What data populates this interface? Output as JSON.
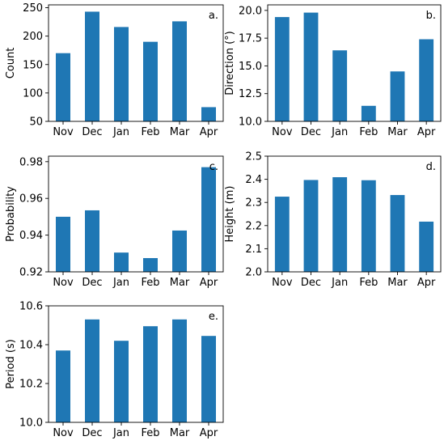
{
  "chart_data": [
    {
      "type": "bar",
      "panel_label": "a.",
      "categories": [
        "Nov",
        "Dec",
        "Jan",
        "Feb",
        "Mar",
        "Apr"
      ],
      "values": [
        170,
        243,
        216,
        190,
        226,
        75
      ],
      "ylabel": "Count",
      "ylim": [
        50,
        255
      ],
      "yticks": [
        "50",
        "100",
        "150",
        "200",
        "250"
      ],
      "ytick_values": [
        50,
        100,
        150,
        200,
        250
      ],
      "color": "#1f77b4"
    },
    {
      "type": "bar",
      "panel_label": "b.",
      "categories": [
        "Nov",
        "Dec",
        "Jan",
        "Feb",
        "Mar",
        "Apr"
      ],
      "values": [
        19.4,
        19.8,
        16.4,
        11.4,
        14.5,
        17.4
      ],
      "ylabel": "Direction (°)",
      "ylim": [
        10.0,
        20.5
      ],
      "yticks": [
        "10.0",
        "12.5",
        "15.0",
        "17.5",
        "20.0"
      ],
      "ytick_values": [
        10.0,
        12.5,
        15.0,
        17.5,
        20.0
      ],
      "color": "#1f77b4"
    },
    {
      "type": "bar",
      "panel_label": "c.",
      "categories": [
        "Nov",
        "Dec",
        "Jan",
        "Feb",
        "Mar",
        "Apr"
      ],
      "values": [
        0.95,
        0.9535,
        0.9305,
        0.9275,
        0.9425,
        0.977
      ],
      "ylabel": "Probability",
      "ylim": [
        0.92,
        0.983
      ],
      "yticks": [
        "0.92",
        "0.94",
        "0.96",
        "0.98"
      ],
      "ytick_values": [
        0.92,
        0.94,
        0.96,
        0.98
      ],
      "color": "#1f77b4"
    },
    {
      "type": "bar",
      "panel_label": "d.",
      "categories": [
        "Nov",
        "Dec",
        "Jan",
        "Feb",
        "Mar",
        "Apr"
      ],
      "values": [
        2.325,
        2.397,
        2.409,
        2.396,
        2.332,
        2.217
      ],
      "ylabel": "Height (m)",
      "ylim": [
        2.0,
        2.5
      ],
      "yticks": [
        "2.0",
        "2.1",
        "2.2",
        "2.3",
        "2.4",
        "2.5"
      ],
      "ytick_values": [
        2.0,
        2.1,
        2.2,
        2.3,
        2.4,
        2.5
      ],
      "color": "#1f77b4"
    },
    {
      "type": "bar",
      "panel_label": "e.",
      "categories": [
        "Nov",
        "Dec",
        "Jan",
        "Feb",
        "Mar",
        "Apr"
      ],
      "values": [
        10.37,
        10.53,
        10.42,
        10.495,
        10.53,
        10.445
      ],
      "ylabel": "Period (s)",
      "ylim": [
        10.0,
        10.6
      ],
      "yticks": [
        "10.0",
        "10.2",
        "10.4",
        "10.6"
      ],
      "ytick_values": [
        10.0,
        10.2,
        10.4,
        10.6
      ],
      "color": "#1f77b4"
    }
  ]
}
